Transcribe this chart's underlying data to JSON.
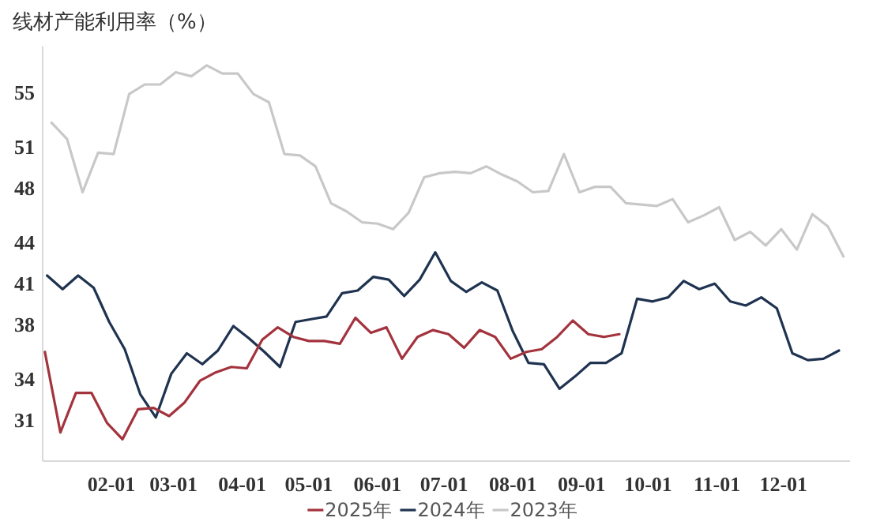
{
  "chart_data": {
    "type": "line",
    "title": "线材产能利用率（%）",
    "xlim": [
      "--01-01",
      "--12-31"
    ],
    "xticks": [
      {
        "value": "--02-01",
        "label": "02-01"
      },
      {
        "value": "--03-01",
        "label": "03-01"
      },
      {
        "value": "--04-01",
        "label": "04-01"
      },
      {
        "value": "--05-01",
        "label": "05-01"
      },
      {
        "value": "--06-01",
        "label": "06-01"
      },
      {
        "value": "--07-01",
        "label": "07-01"
      },
      {
        "value": "--08-01",
        "label": "08-01"
      },
      {
        "value": "--09-01",
        "label": "09-01"
      },
      {
        "value": "--10-01",
        "label": "10-01"
      },
      {
        "value": "--11-01",
        "label": "11-01"
      },
      {
        "value": "--12-01",
        "label": "12-01"
      }
    ],
    "ylim": [
      28,
      58.4
    ],
    "yticks": [
      31,
      34,
      38,
      41,
      44,
      48,
      51,
      55
    ],
    "legend": "bottom",
    "series": [
      {
        "name": "2025年",
        "color": "#a3333d",
        "x": [
          "--01-02",
          "--01-09",
          "--01-16",
          "--01-23",
          "--01-30",
          "--02-06",
          "--02-13",
          "--02-20",
          "--02-27",
          "--03-06",
          "--03-13",
          "--03-20",
          "--03-27",
          "--04-03",
          "--04-10",
          "--04-17",
          "--04-24",
          "--05-01",
          "--05-08",
          "--05-15",
          "--05-22",
          "--05-29",
          "--06-05",
          "--06-12",
          "--06-19",
          "--06-26",
          "--07-03",
          "--07-10",
          "--07-17",
          "--07-24",
          "--07-31",
          "--08-07",
          "--08-14",
          "--08-21",
          "--08-28",
          "--09-04",
          "--09-11",
          "--09-18"
        ],
        "values": [
          36.0,
          30.1,
          33.0,
          33.0,
          30.8,
          29.6,
          31.8,
          31.9,
          31.3,
          32.3,
          33.9,
          34.5,
          34.9,
          34.8,
          36.9,
          37.8,
          37.1,
          36.8,
          36.8,
          36.6,
          38.5,
          37.4,
          37.8,
          35.5,
          37.1,
          37.6,
          37.3,
          36.3,
          37.6,
          37.1,
          35.5,
          36.0,
          36.2,
          37.1,
          38.3,
          37.3,
          37.1,
          37.3
        ]
      },
      {
        "name": "2024年",
        "color": "#1f3350",
        "x": [
          "--01-03",
          "--01-10",
          "--01-17",
          "--01-24",
          "--01-31",
          "--02-07",
          "--02-14",
          "--02-21",
          "--02-28",
          "--03-07",
          "--03-14",
          "--03-21",
          "--03-28",
          "--04-04",
          "--04-11",
          "--04-18",
          "--04-25",
          "--05-02",
          "--05-09",
          "--05-16",
          "--05-23",
          "--05-30",
          "--06-06",
          "--06-13",
          "--06-20",
          "--06-27",
          "--07-04",
          "--07-11",
          "--07-18",
          "--07-25",
          "--08-01",
          "--08-08",
          "--08-15",
          "--08-22",
          "--08-29",
          "--09-05",
          "--09-12",
          "--09-19",
          "--09-26",
          "--10-03",
          "--10-10",
          "--10-17",
          "--10-24",
          "--10-31",
          "--11-07",
          "--11-14",
          "--11-21",
          "--11-28",
          "--12-05",
          "--12-12",
          "--12-19",
          "--12-26"
        ],
        "values": [
          41.6,
          40.6,
          41.6,
          40.7,
          38.2,
          36.2,
          32.9,
          31.2,
          34.4,
          35.9,
          35.1,
          36.1,
          37.9,
          37.0,
          36.0,
          34.9,
          38.2,
          38.4,
          38.6,
          40.3,
          40.5,
          41.5,
          41.3,
          40.1,
          41.3,
          43.3,
          41.2,
          40.4,
          41.1,
          40.5,
          37.5,
          35.2,
          35.1,
          33.3,
          34.2,
          35.2,
          35.2,
          35.9,
          39.9,
          39.7,
          40.0,
          41.2,
          40.6,
          41.0,
          39.7,
          39.4,
          40.0,
          39.2,
          35.9,
          35.4,
          35.5,
          36.1
        ]
      },
      {
        "name": "2023年",
        "color": "#c8c8c8",
        "x": [
          "--01-05",
          "--01-12",
          "--01-19",
          "--01-26",
          "--02-02",
          "--02-09",
          "--02-16",
          "--02-23",
          "--03-02",
          "--03-09",
          "--03-16",
          "--03-23",
          "--03-30",
          "--04-06",
          "--04-13",
          "--04-20",
          "--04-27",
          "--05-04",
          "--05-11",
          "--05-18",
          "--05-25",
          "--06-01",
          "--06-08",
          "--06-15",
          "--06-22",
          "--06-29",
          "--07-06",
          "--07-13",
          "--07-20",
          "--07-27",
          "--08-03",
          "--08-10",
          "--08-17",
          "--08-24",
          "--08-31",
          "--09-07",
          "--09-14",
          "--09-21",
          "--09-28",
          "--10-05",
          "--10-12",
          "--10-19",
          "--10-26",
          "--11-02",
          "--11-09",
          "--11-16",
          "--11-23",
          "--11-30",
          "--12-07",
          "--12-14",
          "--12-21",
          "--12-28"
        ],
        "values": [
          52.8,
          51.6,
          47.7,
          50.6,
          50.5,
          54.9,
          55.6,
          55.6,
          56.5,
          56.2,
          57.0,
          56.4,
          56.4,
          54.9,
          54.3,
          50.5,
          50.4,
          49.6,
          46.9,
          46.3,
          45.5,
          45.4,
          45.0,
          46.2,
          48.8,
          49.1,
          49.2,
          49.1,
          49.6,
          49.0,
          48.5,
          47.7,
          47.8,
          50.5,
          47.7,
          48.1,
          48.1,
          46.9,
          46.8,
          46.7,
          47.2,
          45.5,
          46.0,
          46.6,
          44.2,
          44.8,
          43.8,
          45.0,
          43.5,
          46.1,
          45.2,
          43.0
        ]
      }
    ]
  }
}
